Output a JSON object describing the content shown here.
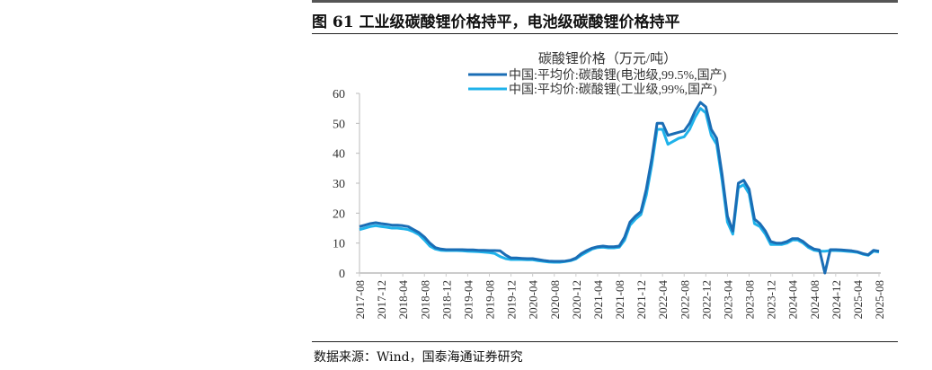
{
  "header": {
    "figure_title": "图 61  工业级碳酸锂价格持平，电池级碳酸锂价格持平"
  },
  "footer": {
    "source": "数据来源：Wind，国泰海通证券研究"
  },
  "chart_data": {
    "type": "line",
    "title": "碳酸锂价格（万元/吨）",
    "xlabel": "",
    "ylabel": "",
    "ylim": [
      0,
      60
    ],
    "yticks": [
      "0",
      "10",
      "20",
      "30",
      "40",
      "50",
      "60"
    ],
    "xticks": [
      "2017-08",
      "2017-12",
      "2018-04",
      "2018-08",
      "2018-12",
      "2019-04",
      "2019-08",
      "2019-12",
      "2020-04",
      "2020-08",
      "2020-12",
      "2021-04",
      "2021-08",
      "2021-12",
      "2022-04",
      "2022-08",
      "2022-12",
      "2023-04",
      "2023-08",
      "2023-12",
      "2024-04",
      "2024-08",
      "2024-12",
      "2025-04",
      "2025-08"
    ],
    "x_start": "2017-08",
    "x_frequency": "monthly",
    "legend_position": "top-center",
    "grid": false,
    "series": [
      {
        "name": "中国:平均价:碳酸锂(电池级,99.5%,国产)",
        "color": "#1a6db5",
        "values": [
          15.5,
          16,
          16.5,
          16.8,
          16.5,
          16.3,
          16,
          16,
          15.8,
          15.5,
          14.5,
          13.5,
          12,
          10,
          8.5,
          8,
          7.8,
          7.8,
          7.8,
          7.8,
          7.7,
          7.7,
          7.6,
          7.6,
          7.5,
          7.5,
          7.4,
          6,
          5,
          5,
          4.9,
          4.8,
          4.8,
          4.5,
          4.2,
          4,
          3.9,
          3.9,
          4,
          4.3,
          5,
          6.5,
          7.5,
          8.3,
          8.8,
          9,
          8.8,
          8.8,
          9,
          12,
          17,
          19,
          20.5,
          28,
          38,
          50,
          50,
          46,
          46.5,
          47,
          47.5,
          50,
          54,
          57,
          55.5,
          48,
          45,
          33,
          19,
          14,
          30,
          31,
          28,
          18,
          16.5,
          14,
          10.5,
          10,
          10,
          10.5,
          11.5,
          11.5,
          10.5,
          9,
          8,
          7.7,
          0,
          7.8,
          7.8,
          7.7,
          7.6,
          7.4,
          7.1,
          6.5,
          6.1,
          7.6,
          7.3
        ]
      },
      {
        "name": "中国:平均价:碳酸锂(工业级,99%,国产)",
        "color": "#1fb2ea",
        "values": [
          14.5,
          15,
          15.5,
          15.8,
          15.5,
          15.3,
          15,
          15,
          14.8,
          14.5,
          13.8,
          12.8,
          11,
          9,
          8,
          7.6,
          7.5,
          7.5,
          7.5,
          7.4,
          7.3,
          7.2,
          7.1,
          7,
          6.8,
          6.5,
          5.5,
          4.8,
          4.5,
          4.5,
          4.5,
          4.4,
          4.4,
          4.1,
          3.9,
          3.7,
          3.6,
          3.6,
          3.8,
          4.1,
          4.7,
          6,
          7,
          8,
          8.5,
          8.6,
          8.4,
          8.4,
          8.6,
          11,
          16,
          18,
          19.5,
          26,
          36,
          48,
          48,
          43,
          44,
          45,
          45.5,
          48,
          52,
          55,
          53.5,
          46,
          43,
          31,
          17,
          13,
          28.5,
          29.5,
          26.5,
          16.5,
          15.5,
          13,
          9.5,
          9.5,
          9.5,
          10,
          11,
          11,
          10,
          8.5,
          7.6,
          7.3,
          7.3,
          7.5,
          7.5,
          7.4,
          7.3,
          7.1,
          6.9,
          6.3,
          5.9,
          7.3,
          7
        ]
      }
    ]
  }
}
